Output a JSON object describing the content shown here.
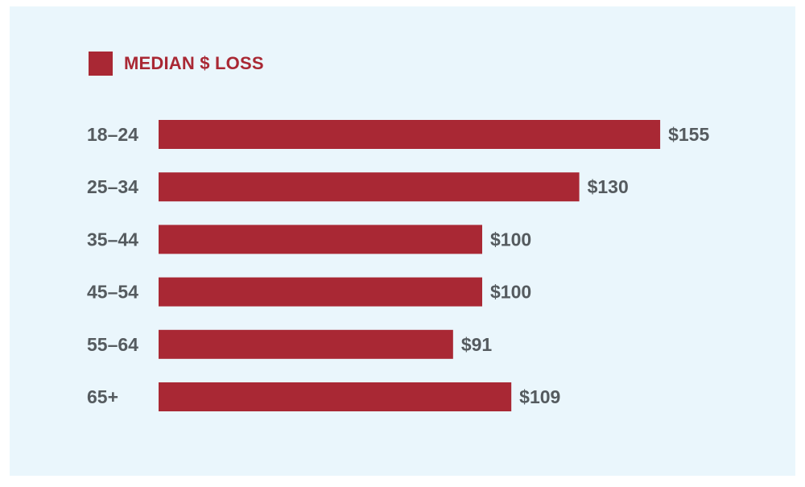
{
  "chart_data": {
    "type": "bar",
    "orientation": "horizontal",
    "categories": [
      "18–24",
      "25–34",
      "35–44",
      "45–54",
      "55–64",
      "65+"
    ],
    "series": [
      {
        "name": "MEDIAN $ LOSS",
        "values": [
          155,
          130,
          100,
          100,
          91,
          109
        ],
        "labels": [
          "$155",
          "$130",
          "$100",
          "$100",
          "$91",
          "$109"
        ]
      }
    ],
    "legend_position": "top-left",
    "grid": false,
    "colors": {
      "bar": "#a92834",
      "background": "#eaf6fc",
      "text": "#555b5f"
    }
  }
}
